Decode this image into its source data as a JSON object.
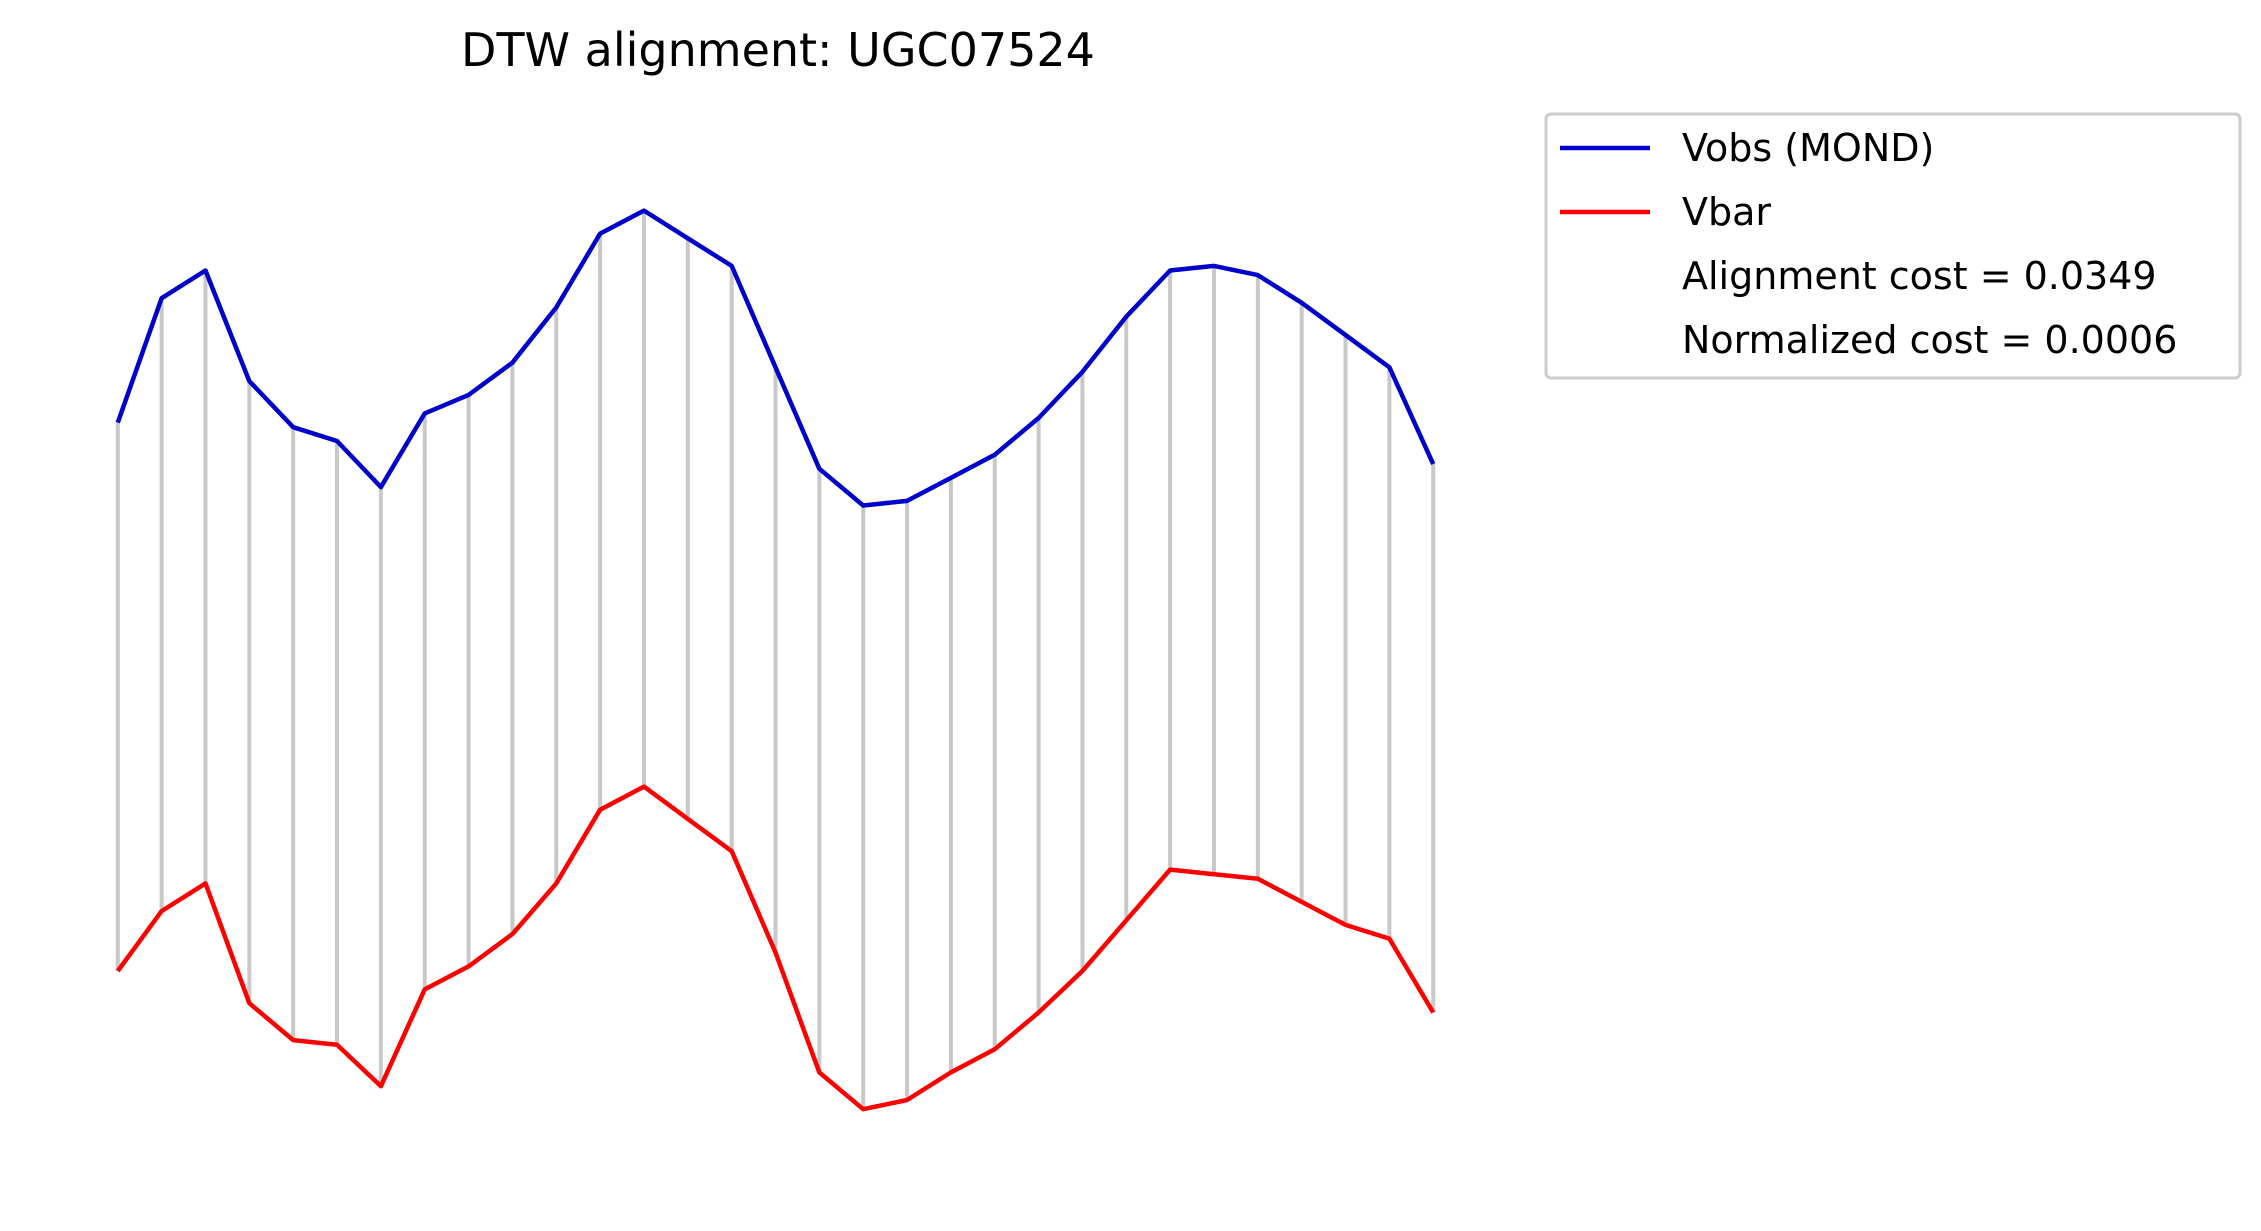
{
  "chart_data": {
    "type": "line",
    "title": "DTW alignment: UGC07524",
    "axes_visible": false,
    "grid": false,
    "legend": {
      "placement": "outside-top-right",
      "entries": [
        {
          "label": "Vobs (MOND)",
          "color": "#0000cc",
          "kind": "line"
        },
        {
          "label": "Vbar",
          "color": "#ff0000",
          "kind": "line"
        },
        {
          "label": "Alignment cost = 0.0349",
          "kind": "text"
        },
        {
          "label": "Normalized cost = 0.0006",
          "kind": "text"
        }
      ]
    },
    "colors": {
      "vobs": "#0000cc",
      "vbar": "#ff0000",
      "alignment": "#c8c8c8"
    },
    "x": [
      0,
      1,
      2,
      3,
      4,
      5,
      6,
      7,
      8,
      9,
      10,
      11,
      12,
      13,
      14,
      15,
      16,
      17,
      18,
      19,
      20,
      21,
      22,
      23,
      24,
      25,
      26,
      27,
      28,
      29,
      30
    ],
    "series": [
      {
        "name": "Vobs (MOND)",
        "values": [
          0.4,
          0.67,
          0.73,
          0.49,
          0.39,
          0.36,
          0.26,
          0.42,
          0.46,
          0.53,
          0.65,
          0.81,
          0.86,
          0.8,
          0.74,
          0.52,
          0.3,
          0.22,
          0.23,
          0.28,
          0.33,
          0.41,
          0.51,
          0.63,
          0.73,
          0.74,
          0.72,
          0.66,
          0.59,
          0.52,
          0.31
        ]
      },
      {
        "name": "Vbar",
        "values": [
          -0.79,
          -0.66,
          -0.6,
          -0.86,
          -0.94,
          -0.95,
          -1.04,
          -0.83,
          -0.78,
          -0.71,
          -0.6,
          -0.44,
          -0.39,
          -0.46,
          -0.53,
          -0.75,
          -1.01,
          -1.09,
          -1.07,
          -1.01,
          -0.96,
          -0.88,
          -0.79,
          -0.68,
          -0.57,
          -0.58,
          -0.59,
          -0.64,
          -0.69,
          -0.72,
          -0.88
        ]
      }
    ],
    "alignment_pairs": [
      [
        0,
        0
      ],
      [
        1,
        1
      ],
      [
        2,
        2
      ],
      [
        3,
        3
      ],
      [
        4,
        4
      ],
      [
        5,
        5
      ],
      [
        6,
        6
      ],
      [
        7,
        7
      ],
      [
        8,
        8
      ],
      [
        9,
        9
      ],
      [
        10,
        10
      ],
      [
        11,
        11
      ],
      [
        12,
        12
      ],
      [
        13,
        13
      ],
      [
        14,
        14
      ],
      [
        15,
        15
      ],
      [
        16,
        16
      ],
      [
        17,
        17
      ],
      [
        18,
        18
      ],
      [
        19,
        19
      ],
      [
        20,
        20
      ],
      [
        21,
        21
      ],
      [
        22,
        22
      ],
      [
        23,
        23
      ],
      [
        24,
        24
      ],
      [
        25,
        25
      ],
      [
        26,
        26
      ],
      [
        27,
        27
      ],
      [
        28,
        28
      ],
      [
        29,
        29
      ],
      [
        30,
        30
      ]
    ],
    "xlim": [
      -1.5,
      31.5
    ],
    "ylim": [
      -1.3,
      1.1
    ]
  }
}
